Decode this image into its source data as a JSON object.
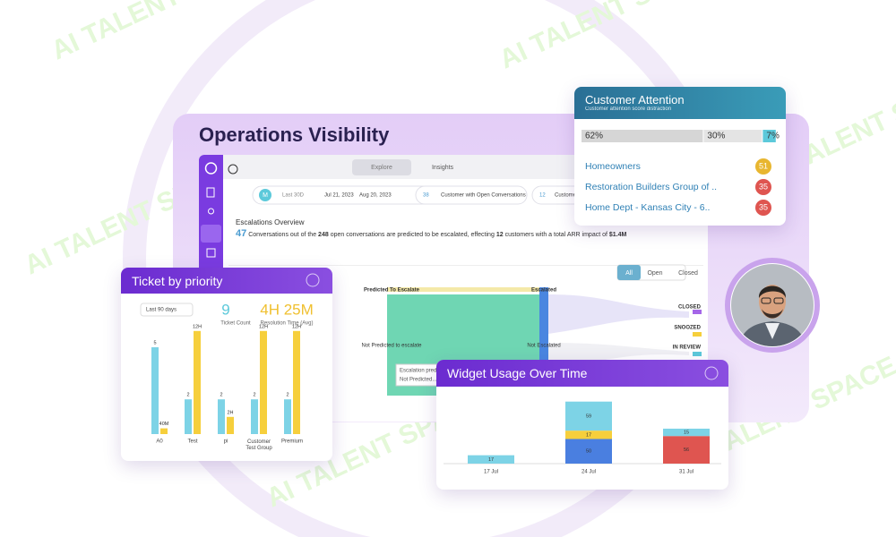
{
  "watermark": "AI TALENT SPACE",
  "title": "Operations Visibility",
  "tabs": [
    "Explore",
    "Insights"
  ],
  "filters": {
    "avatar": "M",
    "range": "Last 30D",
    "start": "Jul 21, 2023",
    "end": "Aug 20, 2023",
    "chips": [
      {
        "count": 38,
        "text": "Customer with Open Conversations"
      },
      {
        "count": 12,
        "text": "Customer..."
      }
    ]
  },
  "escalations": {
    "title": "Escalations Overview",
    "predicted": 47,
    "text_1": "Conversations out of the",
    "open": 248,
    "text_2": "open conversations are predicted to be escalated, effecting",
    "customers": 12,
    "text_3": "customers with a total ARR impact of",
    "arr": "$1.4M"
  },
  "status_buttons": [
    "All",
    "Open",
    "Closed"
  ],
  "sankey": {
    "labels": [
      "Predicted To Escalate",
      "Escalated",
      "Not Predicted to escalate",
      "Not Escalated"
    ],
    "statuses": [
      "CLOSED",
      "SNOOZED",
      "IN REVIEW"
    ],
    "tooltip": [
      "Escalation predi...",
      "Not Predicted..."
    ]
  },
  "customer_attention": {
    "title": "Customer Attention",
    "subtitle": "Customer attention score distraction",
    "distribution": [
      {
        "value": 62,
        "label": "62%",
        "color": "#d6d6d6"
      },
      {
        "value": 30,
        "label": "30%",
        "color": "#e4e4e4"
      },
      {
        "value": 7,
        "label": "7%",
        "color": "#5cc9da"
      }
    ],
    "customers": [
      {
        "name": "Homeowners",
        "score": 51,
        "color": "#e8b630"
      },
      {
        "name": "Restoration Builders Group of ..",
        "score": 35,
        "color": "#df5550"
      },
      {
        "name": "Home Dept - Kansas City - 6..",
        "score": 35,
        "color": "#df5550"
      }
    ]
  },
  "ticket_by_priority": {
    "title": "Ticket by priority",
    "period": "Last 90 days",
    "ticket_count": 9,
    "ticket_count_label": "Ticket Count",
    "resolution_time": "4H 25M",
    "resolution_label": "Resolution Time (Avg)",
    "categories": [
      "A0",
      "Test",
      "pi",
      "Customer Test Group",
      "Premium"
    ],
    "series": [
      {
        "color": "#7dd3e6",
        "values": [
          5,
          2,
          2,
          2,
          2
        ]
      },
      {
        "color": "#f6cf3c",
        "values": [
          40,
          720,
          120,
          720,
          720
        ],
        "value_labels": [
          "40M",
          "12H",
          "2H",
          "12H",
          "12H"
        ]
      }
    ]
  },
  "widget_usage": {
    "title": "Widget Usage Over Time",
    "categories": [
      "17 Jul",
      "24 Jul",
      "31 Jul"
    ],
    "series": [
      {
        "color": "#4a7fe0",
        "values": [
          null,
          50,
          null
        ]
      },
      {
        "color": "#df5550",
        "values": [
          null,
          null,
          56
        ]
      },
      {
        "color": "#f6cf3c",
        "values": [
          null,
          17,
          null
        ]
      },
      {
        "color": "#7dd3e6",
        "values": [
          17,
          59,
          15
        ]
      }
    ]
  }
}
